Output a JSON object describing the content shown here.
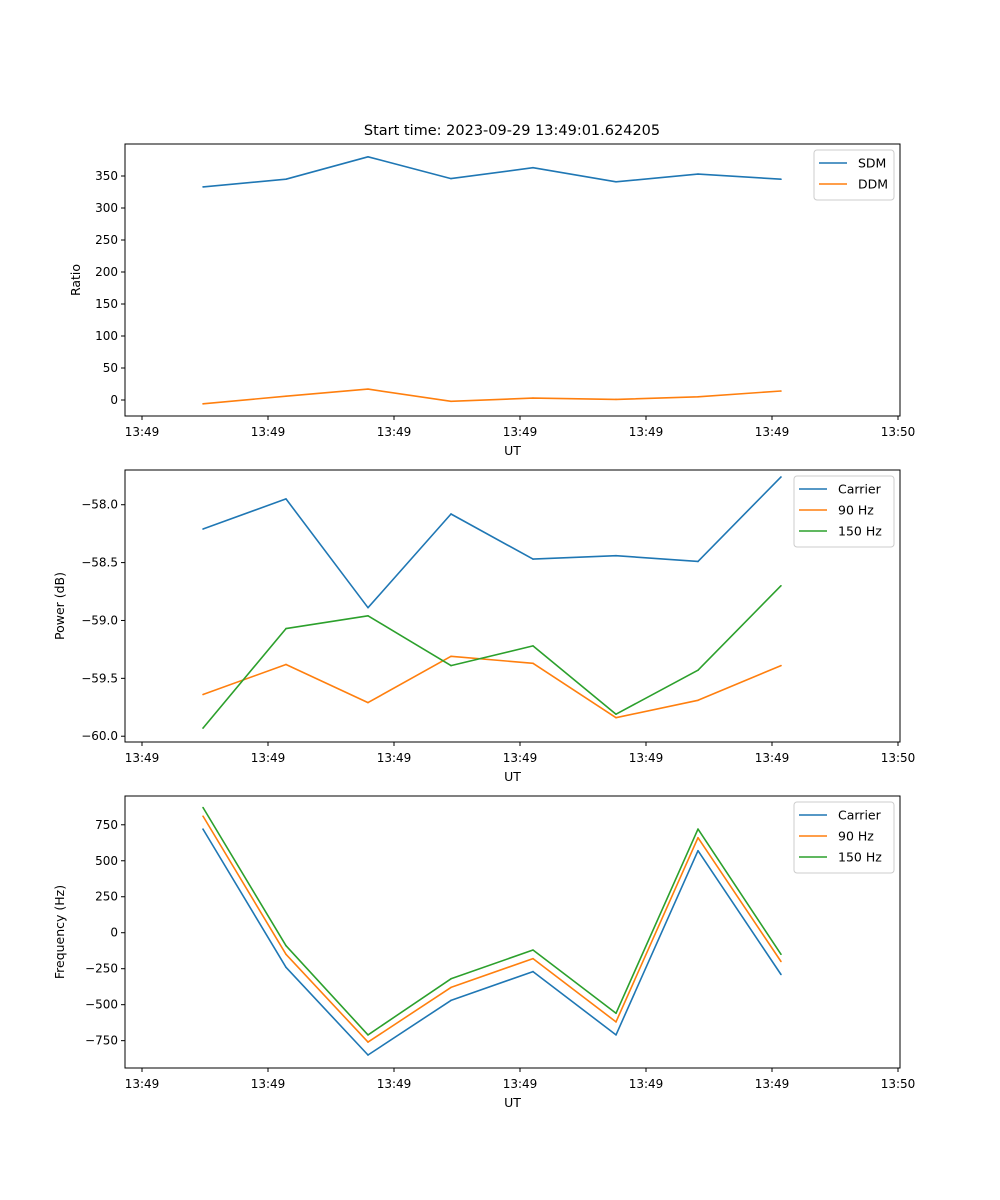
{
  "figure_title": "Start time: 2023-09-29 13:49:01.624205",
  "chart_data": [
    {
      "type": "line",
      "title": "Start time: 2023-09-29 13:49:01.624205",
      "xlabel": "UT",
      "ylabel": "Ratio",
      "x_ticks": [
        "13:49",
        "13:49",
        "13:49",
        "13:49",
        "13:49",
        "13:49",
        "13:50"
      ],
      "ylim": [
        -25,
        400
      ],
      "y_ticks": [
        0,
        50,
        100,
        150,
        200,
        250,
        300,
        350
      ],
      "y_tick_labels": [
        "0",
        "50",
        "100",
        "150",
        "200",
        "250",
        "300",
        "350"
      ],
      "legend": "top-right",
      "series": [
        {
          "name": "SDM",
          "color": "#1f77b4",
          "values": [
            333,
            345,
            380,
            346,
            363,
            341,
            353,
            345
          ]
        },
        {
          "name": "DDM",
          "color": "#ff7f0e",
          "values": [
            -6,
            6,
            17,
            -2,
            3,
            1,
            5,
            14
          ]
        }
      ]
    },
    {
      "type": "line",
      "title": "",
      "xlabel": "UT",
      "ylabel": "Power (dB)",
      "x_ticks": [
        "13:49",
        "13:49",
        "13:49",
        "13:49",
        "13:49",
        "13:49",
        "13:50"
      ],
      "ylim": [
        -60.05,
        -57.7
      ],
      "y_ticks": [
        -58.0,
        -58.5,
        -59.0,
        -59.5,
        -60.0
      ],
      "y_tick_labels": [
        "−58.0",
        "−58.5",
        "−59.0",
        "−59.5",
        "−60.0"
      ],
      "legend": "top-right",
      "series": [
        {
          "name": "Carrier",
          "color": "#1f77b4",
          "values": [
            -58.21,
            -57.95,
            -58.89,
            -58.08,
            -58.47,
            -58.44,
            -58.49,
            -57.76
          ]
        },
        {
          "name": "90 Hz",
          "color": "#ff7f0e",
          "values": [
            -59.64,
            -59.38,
            -59.71,
            -59.31,
            -59.37,
            -59.84,
            -59.69,
            -59.39
          ]
        },
        {
          "name": "150 Hz",
          "color": "#2ca02c",
          "values": [
            -59.93,
            -59.07,
            -58.96,
            -59.39,
            -59.22,
            -59.81,
            -59.43,
            -58.7
          ]
        }
      ]
    },
    {
      "type": "line",
      "title": "",
      "xlabel": "UT",
      "ylabel": "Frequency (Hz)",
      "x_ticks": [
        "13:49",
        "13:49",
        "13:49",
        "13:49",
        "13:49",
        "13:49",
        "13:50"
      ],
      "ylim": [
        -940,
        950
      ],
      "y_ticks": [
        750,
        500,
        250,
        0,
        -250,
        -500,
        -750
      ],
      "y_tick_labels": [
        "750",
        "500",
        "250",
        "0",
        "−250",
        "−500",
        "−750"
      ],
      "legend": "top-right",
      "series": [
        {
          "name": "Carrier",
          "color": "#1f77b4",
          "values": [
            720,
            -240,
            -850,
            -470,
            -270,
            -710,
            570,
            -290
          ]
        },
        {
          "name": "90 Hz",
          "color": "#ff7f0e",
          "values": [
            810,
            -150,
            -760,
            -380,
            -180,
            -620,
            660,
            -200
          ]
        },
        {
          "name": "150 Hz",
          "color": "#2ca02c",
          "values": [
            870,
            -90,
            -710,
            -320,
            -120,
            -560,
            720,
            -150
          ]
        }
      ]
    }
  ]
}
